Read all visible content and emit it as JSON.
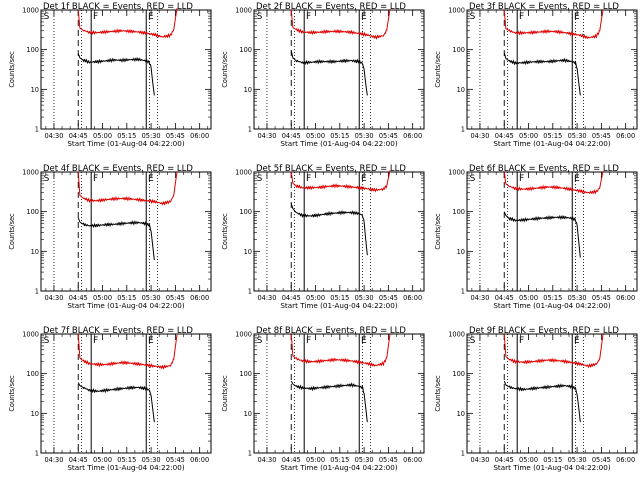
{
  "figure": {
    "x_ticks": [
      "04:30",
      "04:45",
      "05:00",
      "05:15",
      "05:30",
      "05:45",
      "06:00"
    ],
    "x_label": "Start Time (01-Aug-04 04:22:00)",
    "y_label": "Counts/sec",
    "y_ticks": [
      "1",
      "10",
      "100",
      "1000"
    ],
    "legend_event_color": "#000000",
    "legend_lld_color": "#e00000"
  },
  "chart_data": [
    {
      "type": "line",
      "title": "Det 1f BLACK = Events, RED = LLD",
      "xlabel": "Start Time (01-Aug-04 04:22:00)",
      "ylabel": "Counts/sec",
      "yscale": "log",
      "ylim": [
        1,
        1000
      ],
      "x_units": "minutes after 04:22:00",
      "xlim": [
        0,
        105
      ],
      "markers": {
        "dotted": [
          8,
          25,
          67,
          72
        ],
        "dashed": [
          23
        ],
        "solid": [
          31,
          65
        ],
        "labels": {
          "S": 1,
          "F": 31.5,
          "E": 65.5
        }
      },
      "series": [
        {
          "name": "Events",
          "color": "#000000",
          "x": [
            23,
            24,
            26,
            30,
            35,
            40,
            45,
            50,
            55,
            60,
            65,
            67,
            68,
            69,
            70
          ],
          "y": [
            80,
            62,
            55,
            48,
            50,
            52,
            55,
            54,
            56,
            57,
            52,
            48,
            35,
            15,
            7
          ]
        },
        {
          "name": "LLD",
          "color": "#e00000",
          "x": [
            23,
            24,
            26,
            30,
            35,
            40,
            45,
            50,
            55,
            60,
            65,
            70,
            75,
            80,
            82,
            83,
            84
          ],
          "y": [
            1000,
            350,
            310,
            270,
            270,
            280,
            290,
            300,
            290,
            280,
            260,
            240,
            210,
            230,
            320,
            600,
            1100
          ]
        }
      ]
    },
    {
      "type": "line",
      "title": "Det 2f BLACK = Events, RED = LLD",
      "xlabel": "Start Time (01-Aug-04 04:22:00)",
      "ylabel": "Counts/sec",
      "yscale": "log",
      "ylim": [
        1,
        1000
      ],
      "x_units": "minutes after 04:22:00",
      "xlim": [
        0,
        105
      ],
      "markers": {
        "dotted": [
          8,
          25,
          67,
          72
        ],
        "dashed": [
          23
        ],
        "solid": [
          31,
          65
        ],
        "labels": {
          "S": 1,
          "F": 31.5,
          "E": 65.5
        }
      },
      "series": [
        {
          "name": "Events",
          "color": "#000000",
          "x": [
            23,
            24,
            26,
            30,
            35,
            40,
            45,
            50,
            55,
            60,
            65,
            67,
            68,
            69,
            70
          ],
          "y": [
            95,
            62,
            53,
            47,
            48,
            50,
            50,
            50,
            52,
            53,
            50,
            45,
            32,
            14,
            7
          ]
        },
        {
          "name": "LLD",
          "color": "#e00000",
          "x": [
            23,
            24,
            26,
            30,
            35,
            40,
            45,
            50,
            55,
            60,
            65,
            70,
            75,
            80,
            82,
            83,
            84
          ],
          "y": [
            1000,
            360,
            320,
            280,
            270,
            275,
            285,
            290,
            285,
            275,
            255,
            235,
            205,
            225,
            310,
            580,
            1050
          ]
        }
      ]
    },
    {
      "type": "line",
      "title": "Det 3f BLACK = Events, RED = LLD",
      "xlabel": "Start Time (01-Aug-04 04:22:00)",
      "ylabel": "Counts/sec",
      "yscale": "log",
      "ylim": [
        1,
        1000
      ],
      "x_units": "minutes after 04:22:00",
      "xlim": [
        0,
        105
      ],
      "markers": {
        "dotted": [
          8,
          25,
          67,
          72
        ],
        "dashed": [
          23
        ],
        "solid": [
          31,
          65
        ],
        "labels": {
          "S": 1,
          "F": 31.5,
          "E": 65.5
        }
      },
      "series": [
        {
          "name": "Events",
          "color": "#000000",
          "x": [
            23,
            24,
            26,
            30,
            35,
            40,
            45,
            50,
            55,
            60,
            65,
            67,
            68,
            69,
            70
          ],
          "y": [
            85,
            60,
            52,
            46,
            47,
            49,
            50,
            50,
            52,
            54,
            50,
            46,
            34,
            15,
            7
          ]
        },
        {
          "name": "LLD",
          "color": "#e00000",
          "x": [
            23,
            24,
            26,
            30,
            35,
            40,
            45,
            50,
            55,
            60,
            65,
            70,
            75,
            80,
            82,
            83,
            84
          ],
          "y": [
            1000,
            340,
            300,
            265,
            265,
            270,
            280,
            290,
            285,
            270,
            250,
            230,
            200,
            220,
            300,
            560,
            1000
          ]
        }
      ]
    },
    {
      "type": "line",
      "title": "Det 4f BLACK = Events, RED = LLD",
      "xlabel": "Start Time (01-Aug-04 04:22:00)",
      "ylabel": "Counts/sec",
      "yscale": "log",
      "ylim": [
        1,
        1000
      ],
      "x_units": "minutes after 04:22:00",
      "xlim": [
        0,
        105
      ],
      "markers": {
        "dotted": [
          8,
          25,
          67,
          72
        ],
        "dashed": [
          23
        ],
        "solid": [
          31,
          65
        ],
        "labels": {
          "S": 1,
          "F": 31.5,
          "E": 65.5
        }
      },
      "series": [
        {
          "name": "Events",
          "color": "#000000",
          "x": [
            23,
            24,
            26,
            30,
            35,
            40,
            45,
            50,
            55,
            60,
            65,
            67,
            68,
            69,
            70
          ],
          "y": [
            70,
            55,
            48,
            44,
            45,
            47,
            48,
            50,
            52,
            53,
            50,
            45,
            32,
            14,
            6
          ]
        },
        {
          "name": "LLD",
          "color": "#e00000",
          "x": [
            23,
            24,
            26,
            30,
            35,
            40,
            45,
            50,
            55,
            60,
            65,
            70,
            75,
            80,
            82,
            83,
            84
          ],
          "y": [
            1000,
            260,
            220,
            190,
            190,
            200,
            210,
            215,
            210,
            200,
            190,
            180,
            160,
            180,
            260,
            520,
            1000
          ]
        }
      ]
    },
    {
      "type": "line",
      "title": "Det 5f BLACK = Events, RED = LLD",
      "xlabel": "Start Time (01-Aug-04 04:22:00)",
      "ylabel": "Counts/sec",
      "yscale": "log",
      "ylim": [
        1,
        1000
      ],
      "x_units": "minutes after 04:22:00",
      "xlim": [
        0,
        105
      ],
      "markers": {
        "dotted": [
          8,
          25,
          67,
          72
        ],
        "dashed": [
          23
        ],
        "solid": [
          31,
          65
        ],
        "labels": {
          "S": 1,
          "F": 31.5,
          "E": 65.5
        }
      },
      "series": [
        {
          "name": "Events",
          "color": "#000000",
          "x": [
            23,
            24,
            26,
            30,
            35,
            40,
            45,
            50,
            55,
            60,
            65,
            67,
            68,
            69,
            70
          ],
          "y": [
            160,
            120,
            95,
            80,
            78,
            82,
            88,
            92,
            95,
            95,
            90,
            80,
            55,
            20,
            8
          ]
        },
        {
          "name": "LLD",
          "color": "#e00000",
          "x": [
            23,
            24,
            26,
            30,
            35,
            40,
            45,
            50,
            55,
            60,
            65,
            70,
            75,
            80,
            82,
            83,
            84
          ],
          "y": [
            1000,
            520,
            450,
            400,
            400,
            410,
            430,
            450,
            440,
            420,
            400,
            380,
            350,
            370,
            450,
            700,
            1100
          ]
        }
      ]
    },
    {
      "type": "line",
      "title": "Det 6f BLACK = Events, RED = LLD",
      "xlabel": "Start Time (01-Aug-04 04:22:00)",
      "ylabel": "Counts/sec",
      "yscale": "log",
      "ylim": [
        1,
        1000
      ],
      "x_units": "minutes after 04:22:00",
      "xlim": [
        0,
        105
      ],
      "markers": {
        "dotted": [
          8,
          25,
          67,
          72
        ],
        "dashed": [
          23
        ],
        "solid": [
          31,
          65
        ],
        "labels": {
          "S": 1,
          "F": 31.5,
          "E": 65.5
        }
      },
      "series": [
        {
          "name": "Events",
          "color": "#000000",
          "x": [
            23,
            24,
            26,
            30,
            35,
            40,
            45,
            50,
            55,
            60,
            65,
            67,
            68,
            69,
            70
          ],
          "y": [
            100,
            80,
            68,
            60,
            62,
            65,
            68,
            70,
            72,
            72,
            68,
            62,
            45,
            18,
            7
          ]
        },
        {
          "name": "LLD",
          "color": "#e00000",
          "x": [
            23,
            24,
            26,
            30,
            35,
            40,
            45,
            50,
            55,
            60,
            65,
            70,
            75,
            80,
            82,
            83,
            84
          ],
          "y": [
            1000,
            500,
            440,
            380,
            370,
            380,
            400,
            420,
            410,
            390,
            360,
            330,
            300,
            320,
            400,
            650,
            1050
          ]
        }
      ]
    },
    {
      "type": "line",
      "title": "Det 7f BLACK = Events, RED = LLD",
      "xlabel": "Start Time (01-Aug-04 04:22:00)",
      "ylabel": "Counts/sec",
      "yscale": "log",
      "ylim": [
        1,
        1000
      ],
      "x_units": "minutes after 04:22:00",
      "xlim": [
        0,
        105
      ],
      "markers": {
        "dotted": [
          8,
          25,
          67,
          72
        ],
        "dashed": [
          23
        ],
        "solid": [
          31,
          65
        ],
        "labels": {
          "S": 1,
          "F": 31.5,
          "E": 65.5
        }
      },
      "series": [
        {
          "name": "Events",
          "color": "#000000",
          "x": [
            23,
            24,
            26,
            30,
            35,
            40,
            45,
            50,
            55,
            60,
            65,
            67,
            68,
            69,
            70
          ],
          "y": [
            60,
            50,
            45,
            38,
            36,
            38,
            40,
            42,
            44,
            45,
            42,
            38,
            28,
            13,
            6
          ]
        },
        {
          "name": "LLD",
          "color": "#e00000",
          "x": [
            23,
            24,
            26,
            30,
            35,
            40,
            45,
            50,
            55,
            60,
            65,
            70,
            75,
            80,
            82,
            83,
            84
          ],
          "y": [
            1000,
            250,
            210,
            180,
            170,
            170,
            180,
            190,
            185,
            175,
            165,
            155,
            145,
            160,
            230,
            480,
            950
          ]
        }
      ]
    },
    {
      "type": "line",
      "title": "Det 8f BLACK = Events, RED = LLD",
      "xlabel": "Start Time (01-Aug-04 04:22:00)",
      "ylabel": "Counts/sec",
      "yscale": "log",
      "ylim": [
        1,
        1000
      ],
      "x_units": "minutes after 04:22:00",
      "xlim": [
        0,
        105
      ],
      "markers": {
        "dotted": [
          8,
          25,
          67,
          72
        ],
        "dashed": [
          23
        ],
        "solid": [
          31,
          65
        ],
        "labels": {
          "S": 1,
          "F": 31.5,
          "E": 65.5
        }
      },
      "series": [
        {
          "name": "Events",
          "color": "#000000",
          "x": [
            23,
            24,
            26,
            30,
            35,
            40,
            45,
            50,
            55,
            60,
            65,
            67,
            68,
            69,
            70
          ],
          "y": [
            65,
            55,
            48,
            44,
            42,
            44,
            46,
            48,
            50,
            52,
            48,
            44,
            32,
            14,
            6
          ]
        },
        {
          "name": "LLD",
          "color": "#e00000",
          "x": [
            23,
            24,
            26,
            30,
            35,
            40,
            45,
            50,
            55,
            60,
            65,
            70,
            75,
            80,
            82,
            83,
            84
          ],
          "y": [
            1000,
            280,
            240,
            210,
            200,
            205,
            215,
            225,
            220,
            210,
            195,
            180,
            160,
            180,
            250,
            500,
            1000
          ]
        }
      ]
    },
    {
      "type": "line",
      "title": "Det 9f BLACK = Events, RED = LLD",
      "xlabel": "Start Time (01-Aug-04 04:22:00)",
      "ylabel": "Counts/sec",
      "yscale": "log",
      "ylim": [
        1,
        1000
      ],
      "x_units": "minutes after 04:22:00",
      "xlim": [
        0,
        105
      ],
      "markers": {
        "dotted": [
          8,
          25,
          67,
          72
        ],
        "dashed": [
          23
        ],
        "solid": [
          31,
          65
        ],
        "labels": {
          "S": 1,
          "F": 31.5,
          "E": 65.5
        }
      },
      "series": [
        {
          "name": "Events",
          "color": "#000000",
          "x": [
            23,
            24,
            26,
            30,
            35,
            40,
            45,
            50,
            55,
            60,
            65,
            67,
            68,
            69,
            70
          ],
          "y": [
            65,
            52,
            46,
            42,
            40,
            42,
            44,
            46,
            48,
            50,
            47,
            42,
            30,
            14,
            6
          ]
        },
        {
          "name": "LLD",
          "color": "#e00000",
          "x": [
            23,
            24,
            26,
            30,
            35,
            40,
            45,
            50,
            55,
            60,
            65,
            70,
            75,
            80,
            82,
            83,
            84
          ],
          "y": [
            1000,
            270,
            230,
            200,
            195,
            200,
            210,
            220,
            215,
            205,
            190,
            175,
            155,
            175,
            240,
            480,
            980
          ]
        }
      ]
    }
  ]
}
